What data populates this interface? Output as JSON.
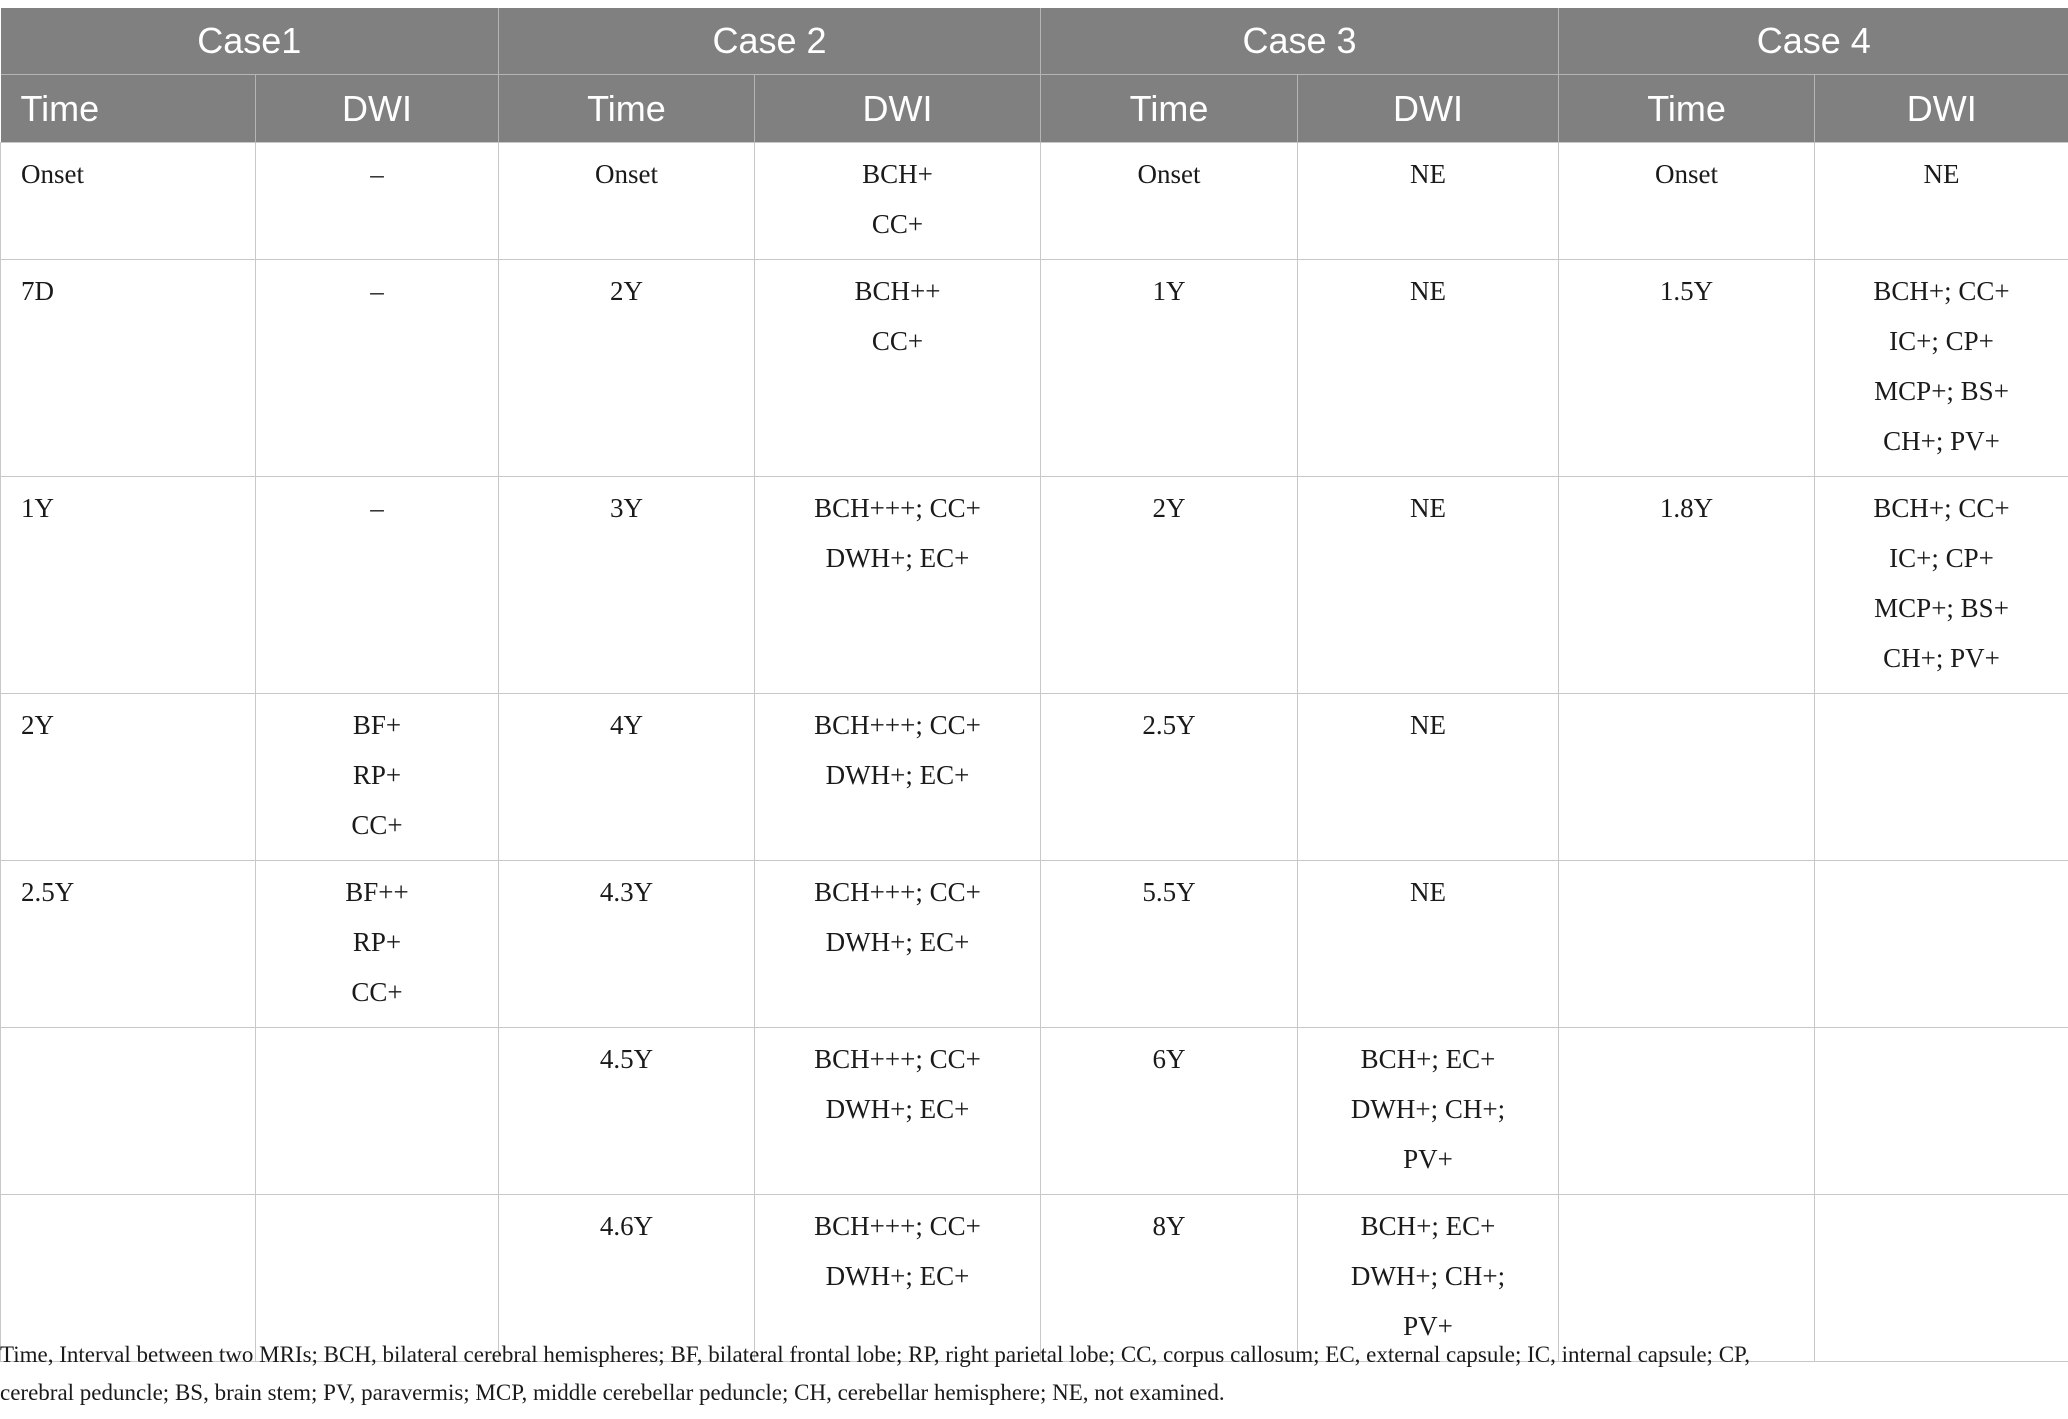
{
  "cases": [
    "Case1",
    "Case 2",
    "Case 3",
    "Case 4"
  ],
  "subheaders": [
    "Time",
    "DWI",
    "Time",
    "DWI",
    "Time",
    "DWI",
    "Time",
    "DWI"
  ],
  "rows": [
    [
      [
        "Onset"
      ],
      [
        "–"
      ],
      [
        "Onset"
      ],
      [
        "BCH+",
        "CC+"
      ],
      [
        "Onset"
      ],
      [
        "NE"
      ],
      [
        "Onset"
      ],
      [
        "NE"
      ]
    ],
    [
      [
        "7D"
      ],
      [
        "–"
      ],
      [
        "2Y"
      ],
      [
        "BCH++",
        "CC+"
      ],
      [
        "1Y"
      ],
      [
        "NE"
      ],
      [
        "1.5Y"
      ],
      [
        "BCH+; CC+",
        "IC+; CP+",
        "MCP+; BS+",
        "CH+; PV+"
      ]
    ],
    [
      [
        "1Y"
      ],
      [
        "–"
      ],
      [
        "3Y"
      ],
      [
        "BCH+++; CC+",
        "DWH+; EC+"
      ],
      [
        "2Y"
      ],
      [
        "NE"
      ],
      [
        "1.8Y"
      ],
      [
        "BCH+; CC+",
        "IC+; CP+",
        "MCP+; BS+",
        "CH+; PV+"
      ]
    ],
    [
      [
        "2Y"
      ],
      [
        "BF+",
        "RP+",
        "CC+"
      ],
      [
        "4Y"
      ],
      [
        "BCH+++; CC+",
        "DWH+; EC+"
      ],
      [
        "2.5Y"
      ],
      [
        "NE"
      ],
      [],
      []
    ],
    [
      [
        "2.5Y"
      ],
      [
        "BF++",
        "RP+",
        "CC+"
      ],
      [
        "4.3Y"
      ],
      [
        "BCH+++; CC+",
        "DWH+; EC+"
      ],
      [
        "5.5Y"
      ],
      [
        "NE"
      ],
      [],
      []
    ],
    [
      [],
      [],
      [
        "4.5Y"
      ],
      [
        "BCH+++; CC+",
        "DWH+; EC+"
      ],
      [
        "6Y"
      ],
      [
        "BCH+; EC+",
        "DWH+; CH+;",
        "PV+"
      ],
      [],
      []
    ],
    [
      [],
      [],
      [
        "4.6Y"
      ],
      [
        "BCH+++; CC+",
        "DWH+; EC+"
      ],
      [
        "8Y"
      ],
      [
        "BCH+; EC+",
        "DWH+; CH+;",
        "PV+"
      ],
      [],
      []
    ]
  ],
  "footnote_lines": [
    "Time, Interval between two MRIs; BCH, bilateral cerebral hemispheres; BF, bilateral frontal lobe; RP, right parietal lobe; CC, corpus callosum; EC, external capsule; IC, internal capsule; CP,",
    "cerebral peduncle; BS, brain stem; PV, paravermis; MCP, middle cerebellar peduncle; CH, cerebellar hemisphere; NE, not examined."
  ],
  "colors": {
    "header_bg": "#808080",
    "header_text": "#ffffff",
    "grid": "#c8c8c8"
  }
}
